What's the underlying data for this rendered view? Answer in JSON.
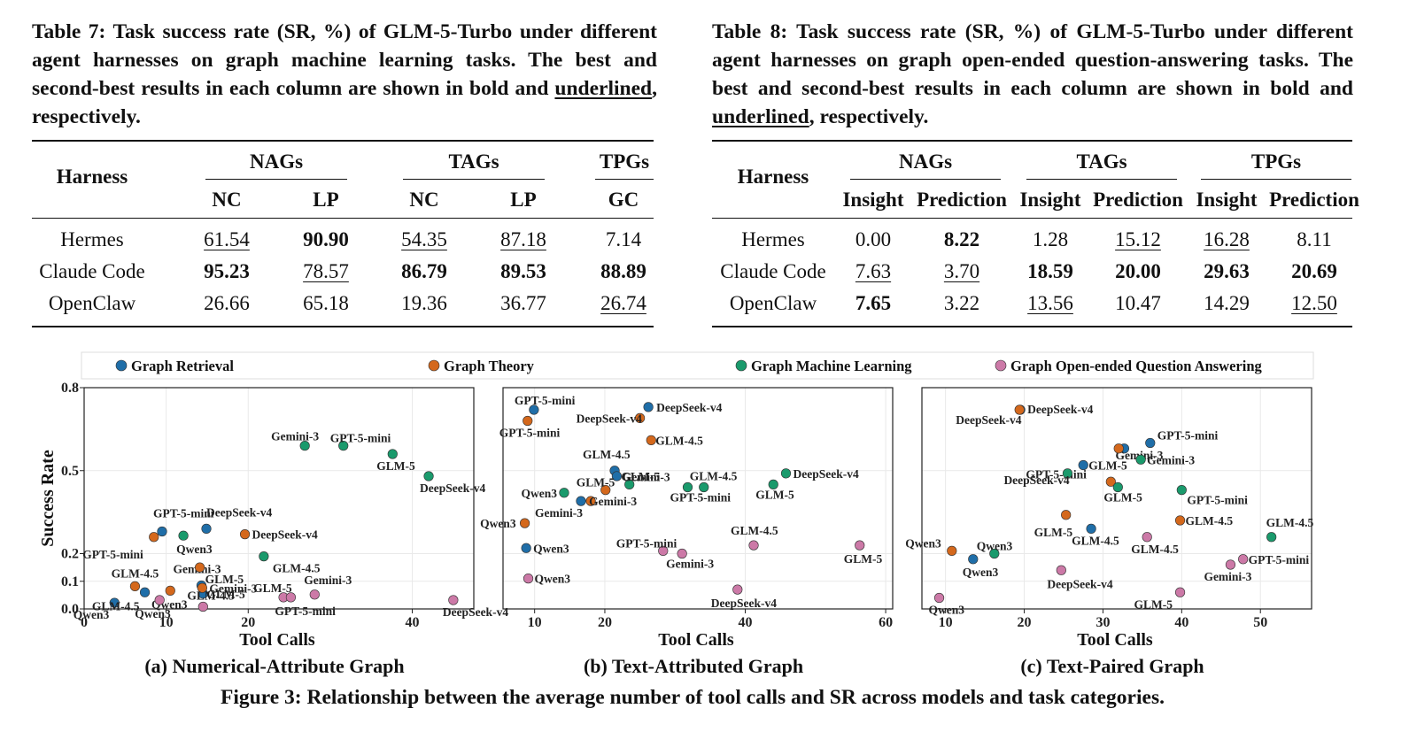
{
  "table7": {
    "caption_lead": "Table 7: Task success rate (SR, %) of GLM-5-Turbo under different agent harnesses on graph machine learning tasks. The best and second-best results in each column are shown in bold and ",
    "caption_underlined": "underlined",
    "caption_tail": ", respectively.",
    "harness_header": "Harness",
    "groups": [
      "NAGs",
      "TAGs",
      "TPGs"
    ],
    "subcols": [
      "NC",
      "LP",
      "NC",
      "LP",
      "GC"
    ],
    "rows": [
      {
        "name": "Hermes",
        "cells": [
          {
            "v": "61.54",
            "s": "u"
          },
          {
            "v": "90.90",
            "s": "b"
          },
          {
            "v": "54.35",
            "s": "u"
          },
          {
            "v": "87.18",
            "s": "u"
          },
          {
            "v": "7.14",
            "s": ""
          }
        ]
      },
      {
        "name": "Claude Code",
        "cells": [
          {
            "v": "95.23",
            "s": "b"
          },
          {
            "v": "78.57",
            "s": "u"
          },
          {
            "v": "86.79",
            "s": "b"
          },
          {
            "v": "89.53",
            "s": "b"
          },
          {
            "v": "88.89",
            "s": "b"
          }
        ]
      },
      {
        "name": "OpenClaw",
        "cells": [
          {
            "v": "26.66",
            "s": ""
          },
          {
            "v": "65.18",
            "s": ""
          },
          {
            "v": "19.36",
            "s": ""
          },
          {
            "v": "36.77",
            "s": ""
          },
          {
            "v": "26.74",
            "s": "u"
          }
        ]
      }
    ]
  },
  "table8": {
    "caption_lead": "Table 8: Task success rate (SR, %) of GLM-5-Turbo under different agent harnesses on graph open-ended question-answering tasks. The best and second-best results in each column are shown in bold and ",
    "caption_underlined": "underlined",
    "caption_tail": ", respectively.",
    "harness_header": "Harness",
    "groups": [
      "NAGs",
      "TAGs",
      "TPGs"
    ],
    "subcols": [
      "Insight",
      "Prediction",
      "Insight",
      "Prediction",
      "Insight",
      "Prediction"
    ],
    "rows": [
      {
        "name": "Hermes",
        "cells": [
          {
            "v": "0.00",
            "s": ""
          },
          {
            "v": "8.22",
            "s": "b"
          },
          {
            "v": "1.28",
            "s": ""
          },
          {
            "v": "15.12",
            "s": "u"
          },
          {
            "v": "16.28",
            "s": "u"
          },
          {
            "v": "8.11",
            "s": ""
          }
        ]
      },
      {
        "name": "Claude Code",
        "cells": [
          {
            "v": "7.63",
            "s": "u"
          },
          {
            "v": "3.70",
            "s": "u"
          },
          {
            "v": "18.59",
            "s": "b"
          },
          {
            "v": "20.00",
            "s": "b"
          },
          {
            "v": "29.63",
            "s": "b"
          },
          {
            "v": "20.69",
            "s": "b"
          }
        ]
      },
      {
        "name": "OpenClaw",
        "cells": [
          {
            "v": "7.65",
            "s": "b"
          },
          {
            "v": "3.22",
            "s": ""
          },
          {
            "v": "13.56",
            "s": "u"
          },
          {
            "v": "10.47",
            "s": ""
          },
          {
            "v": "14.29",
            "s": ""
          },
          {
            "v": "12.50",
            "s": "u"
          }
        ]
      }
    ]
  },
  "figure": {
    "caption": "Figure 3: Relationship between the average number of tool calls and SR across models and task categories.",
    "legend": [
      {
        "name": "Graph Retrieval",
        "color": "#1f6ea8"
      },
      {
        "name": "Graph Theory",
        "color": "#d4681c"
      },
      {
        "name": "Graph Machine Learning",
        "color": "#1a9a6c"
      },
      {
        "name": "Graph Open-ended Question Answering",
        "color": "#cc79a7"
      }
    ]
  },
  "chart_data": [
    {
      "type": "scatter",
      "subtitle": "(a) Numerical-Attribute Graph",
      "xlabel": "Tool Calls",
      "ylabel": "Success Rate",
      "xlim": [
        0,
        47.5
      ],
      "ylim": [
        0,
        0.8
      ],
      "xticks": [
        "0",
        "10",
        "20",
        "40"
      ],
      "xtick_vals": [
        0,
        10,
        20,
        40
      ],
      "yticks": [
        "0.0",
        "0.1",
        "0.2",
        "0.5",
        "0.8"
      ],
      "ytick_vals": [
        0,
        0.1,
        0.2,
        0.5,
        0.8
      ],
      "grid": true,
      "points": [
        {
          "model": "Qwen3",
          "category": "Graph Retrieval",
          "x": 3.7,
          "y": 0.022
        },
        {
          "model": "GLM-4.5",
          "category": "Graph Retrieval",
          "x": 7.4,
          "y": 0.06
        },
        {
          "model": "GPT-5-mini",
          "category": "Graph Retrieval",
          "x": 9.5,
          "y": 0.28
        },
        {
          "model": "DeepSeek-v4",
          "category": "Graph Retrieval",
          "x": 14.9,
          "y": 0.29
        },
        {
          "model": "Gemini-3",
          "category": "Graph Retrieval",
          "x": 14.3,
          "y": 0.085
        },
        {
          "model": "GLM-5",
          "category": "Graph Retrieval",
          "x": 14.5,
          "y": 0.055
        },
        {
          "model": "GLM-4.5",
          "category": "Graph Theory",
          "x": 6.2,
          "y": 0.082
        },
        {
          "model": "GPT-5-mini",
          "category": "Graph Theory",
          "x": 8.5,
          "y": 0.26
        },
        {
          "model": "Qwen3",
          "category": "Graph Theory",
          "x": 10.5,
          "y": 0.066
        },
        {
          "model": "Gemini-3",
          "category": "Graph Theory",
          "x": 14.4,
          "y": 0.076
        },
        {
          "model": "GLM-5",
          "category": "Graph Theory",
          "x": 14.1,
          "y": 0.15
        },
        {
          "model": "DeepSeek-v4",
          "category": "Graph Theory",
          "x": 19.6,
          "y": 0.27
        },
        {
          "model": "Qwen3",
          "category": "Graph Machine Learning",
          "x": 12.1,
          "y": 0.265
        },
        {
          "model": "GLM-4.5",
          "category": "Graph Machine Learning",
          "x": 21.9,
          "y": 0.19
        },
        {
          "model": "Gemini-3",
          "category": "Graph Machine Learning",
          "x": 26.9,
          "y": 0.59
        },
        {
          "model": "GPT-5-mini",
          "category": "Graph Machine Learning",
          "x": 31.6,
          "y": 0.59
        },
        {
          "model": "GLM-5",
          "category": "Graph Machine Learning",
          "x": 37.6,
          "y": 0.56
        },
        {
          "model": "DeepSeek-v4",
          "category": "Graph Machine Learning",
          "x": 42.0,
          "y": 0.48
        },
        {
          "model": "Qwen3",
          "category": "Graph Open-ended Question Answering",
          "x": 9.2,
          "y": 0.032
        },
        {
          "model": "GLM-4.5",
          "category": "Graph Open-ended Question Answering",
          "x": 14.5,
          "y": 0.008
        },
        {
          "model": "GLM-5",
          "category": "Graph Open-ended Question Answering",
          "x": 24.3,
          "y": 0.042
        },
        {
          "model": "GPT-5-mini",
          "category": "Graph Open-ended Question Answering",
          "x": 25.2,
          "y": 0.042
        },
        {
          "model": "Gemini-3",
          "category": "Graph Open-ended Question Answering",
          "x": 28.1,
          "y": 0.052
        },
        {
          "model": "DeepSeek-v4",
          "category": "Graph Open-ended Question Answering",
          "x": 45.0,
          "y": 0.032
        }
      ]
    },
    {
      "type": "scatter",
      "subtitle": "(b) Text-Attributed Graph",
      "xlabel": "Tool Calls",
      "ylabel": "",
      "xlim": [
        5.5,
        61
      ],
      "ylim": [
        0,
        0.8
      ],
      "xticks": [
        "10",
        "20",
        "40",
        "60"
      ],
      "xtick_vals": [
        10,
        20,
        40,
        60
      ],
      "grid": true,
      "points": [
        {
          "model": "GPT-5-mini",
          "category": "Graph Retrieval",
          "x": 9.9,
          "y": 0.72
        },
        {
          "model": "DeepSeek-v4",
          "category": "Graph Retrieval",
          "x": 26.2,
          "y": 0.73
        },
        {
          "model": "GLM-4.5",
          "category": "Graph Retrieval",
          "x": 21.4,
          "y": 0.5
        },
        {
          "model": "GLM-5",
          "category": "Graph Retrieval",
          "x": 21.7,
          "y": 0.48
        },
        {
          "model": "Gemini-3",
          "category": "Graph Retrieval",
          "x": 16.6,
          "y": 0.39
        },
        {
          "model": "Qwen3",
          "category": "Graph Retrieval",
          "x": 8.8,
          "y": 0.22
        },
        {
          "model": "GPT-5-mini",
          "category": "Graph Theory",
          "x": 9.0,
          "y": 0.68
        },
        {
          "model": "DeepSeek-v4",
          "category": "Graph Theory",
          "x": 25.0,
          "y": 0.69
        },
        {
          "model": "GLM-4.5",
          "category": "Graph Theory",
          "x": 26.6,
          "y": 0.61
        },
        {
          "model": "GLM-5",
          "category": "Graph Theory",
          "x": 20.1,
          "y": 0.43
        },
        {
          "model": "Gemini-3",
          "category": "Graph Theory",
          "x": 18.0,
          "y": 0.39
        },
        {
          "model": "Qwen3",
          "category": "Graph Theory",
          "x": 8.6,
          "y": 0.31
        },
        {
          "model": "Qwen3",
          "category": "Graph Machine Learning",
          "x": 14.2,
          "y": 0.42
        },
        {
          "model": "Gemini-3",
          "category": "Graph Machine Learning",
          "x": 23.5,
          "y": 0.45
        },
        {
          "model": "GPT-5-mini",
          "category": "Graph Machine Learning",
          "x": 31.8,
          "y": 0.44
        },
        {
          "model": "GLM-4.5",
          "category": "Graph Machine Learning",
          "x": 34.1,
          "y": 0.44
        },
        {
          "model": "GLM-5",
          "category": "Graph Machine Learning",
          "x": 44.0,
          "y": 0.45
        },
        {
          "model": "DeepSeek-v4",
          "category": "Graph Machine Learning",
          "x": 45.8,
          "y": 0.49
        },
        {
          "model": "Qwen3",
          "category": "Graph Open-ended Question Answering",
          "x": 9.1,
          "y": 0.11
        },
        {
          "model": "GPT-5-mini",
          "category": "Graph Open-ended Question Answering",
          "x": 28.3,
          "y": 0.21
        },
        {
          "model": "Gemini-3",
          "category": "Graph Open-ended Question Answering",
          "x": 31.0,
          "y": 0.2
        },
        {
          "model": "GLM-4.5",
          "category": "Graph Open-ended Question Answering",
          "x": 41.2,
          "y": 0.23
        },
        {
          "model": "DeepSeek-v4",
          "category": "Graph Open-ended Question Answering",
          "x": 38.9,
          "y": 0.07
        },
        {
          "model": "GLM-5",
          "category": "Graph Open-ended Question Answering",
          "x": 56.3,
          "y": 0.23
        }
      ]
    },
    {
      "type": "scatter",
      "subtitle": "(c) Text-Paired Graph",
      "xlabel": "Tool Calls",
      "ylabel": "",
      "xlim": [
        7,
        56.5
      ],
      "ylim": [
        0,
        0.8
      ],
      "xticks": [
        "10",
        "20",
        "30",
        "40",
        "50"
      ],
      "xtick_vals": [
        10,
        20,
        30,
        40,
        50
      ],
      "grid": true,
      "points": [
        {
          "model": "DeepSeek-v4",
          "category": "Graph Retrieval",
          "x": 19.5,
          "y": 0.72
        },
        {
          "model": "GPT-5-mini",
          "category": "Graph Retrieval",
          "x": 36.0,
          "y": 0.6
        },
        {
          "model": "GLM-5",
          "category": "Graph Retrieval",
          "x": 27.5,
          "y": 0.52
        },
        {
          "model": "GLM-4.5",
          "category": "Graph Retrieval",
          "x": 28.5,
          "y": 0.29
        },
        {
          "model": "Qwen3",
          "category": "Graph Retrieval",
          "x": 13.5,
          "y": 0.18
        },
        {
          "model": "Gemini-3",
          "category": "Graph Retrieval",
          "x": 32.7,
          "y": 0.58
        },
        {
          "model": "DeepSeek-v4",
          "category": "Graph Theory",
          "x": 19.4,
          "y": 0.72
        },
        {
          "model": "Gemini-3",
          "category": "Graph Theory",
          "x": 32.0,
          "y": 0.58
        },
        {
          "model": "GPT-5-mini",
          "category": "Graph Theory",
          "x": 31.0,
          "y": 0.46
        },
        {
          "model": "GLM-5",
          "category": "Graph Theory",
          "x": 25.3,
          "y": 0.34
        },
        {
          "model": "GLM-4.5",
          "category": "Graph Theory",
          "x": 39.8,
          "y": 0.32
        },
        {
          "model": "Qwen3",
          "category": "Graph Theory",
          "x": 10.8,
          "y": 0.21
        },
        {
          "model": "DeepSeek-v4",
          "category": "Graph Machine Learning",
          "x": 25.5,
          "y": 0.49
        },
        {
          "model": "Gemini-3",
          "category": "Graph Machine Learning",
          "x": 34.8,
          "y": 0.54
        },
        {
          "model": "GLM-5",
          "category": "Graph Machine Learning",
          "x": 31.9,
          "y": 0.44
        },
        {
          "model": "GPT-5-mini",
          "category": "Graph Machine Learning",
          "x": 40.0,
          "y": 0.43
        },
        {
          "model": "Qwen3",
          "category": "Graph Machine Learning",
          "x": 16.2,
          "y": 0.2
        },
        {
          "model": "GLM-4.5",
          "category": "Graph Machine Learning",
          "x": 51.4,
          "y": 0.26
        },
        {
          "model": "Qwen3",
          "category": "Graph Open-ended Question Answering",
          "x": 9.2,
          "y": 0.04
        },
        {
          "model": "DeepSeek-v4",
          "category": "Graph Open-ended Question Answering",
          "x": 24.7,
          "y": 0.14
        },
        {
          "model": "GLM-4.5",
          "category": "Graph Open-ended Question Answering",
          "x": 35.6,
          "y": 0.26
        },
        {
          "model": "GLM-5",
          "category": "Graph Open-ended Question Answering",
          "x": 39.8,
          "y": 0.06
        },
        {
          "model": "Gemini-3",
          "category": "Graph Open-ended Question Answering",
          "x": 46.2,
          "y": 0.16
        },
        {
          "model": "GPT-5-mini",
          "category": "Graph Open-ended Question Answering",
          "x": 47.8,
          "y": 0.18
        }
      ]
    }
  ]
}
